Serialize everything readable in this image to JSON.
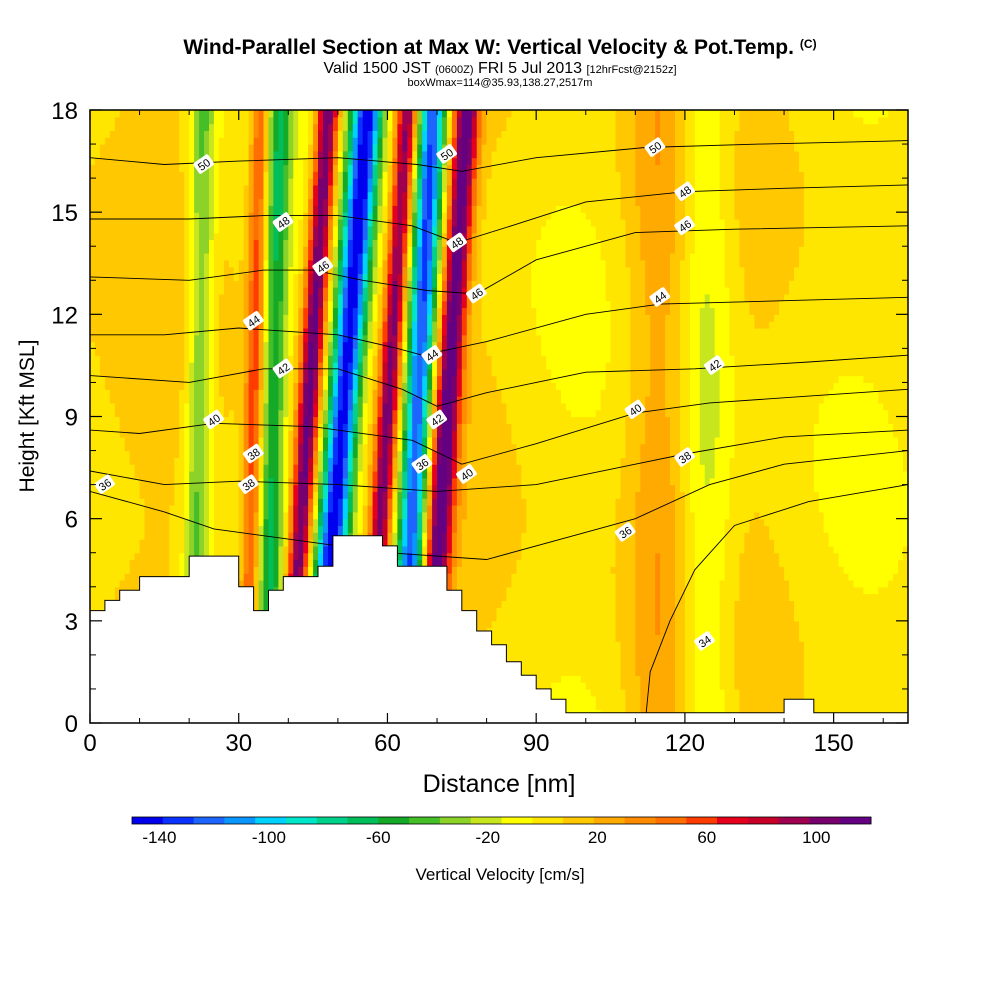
{
  "title": {
    "main": "Wind-Parallel Section at Max W: Vertical Velocity & Pot.Temp.",
    "copyright": "(C)",
    "valid_prefix": "Valid 1500 JST",
    "valid_utc": "(0600Z)",
    "valid_date": "FRI 5 Jul 2013",
    "forecast": "[12hrFcst@2152z]",
    "boxwmax": "boxWmax=114@35.93,138.27,2517m"
  },
  "chart_data": {
    "type": "heatmap",
    "xlabel": "Distance [nm]",
    "ylabel": "Height [Kft MSL]",
    "xlim": [
      0,
      165
    ],
    "ylim": [
      0,
      18
    ],
    "x_ticks": [
      0,
      30,
      60,
      90,
      120,
      150
    ],
    "y_ticks": [
      0,
      3,
      6,
      9,
      12,
      15,
      18
    ],
    "colorbar": {
      "label": "Vertical Velocity [cm/s]",
      "min": -150,
      "max": 120,
      "tick_values": [
        -140,
        -100,
        -60,
        -20,
        20,
        60,
        100
      ],
      "colors": [
        "#0000ee",
        "#0a32ff",
        "#1e64ff",
        "#0a96ff",
        "#00d2ff",
        "#00e6c8",
        "#00d28c",
        "#00be5a",
        "#14aa28",
        "#46be28",
        "#8cd228",
        "#c8e61e",
        "#ffff00",
        "#ffe600",
        "#ffc800",
        "#ffaa00",
        "#ff8c00",
        "#ff6e00",
        "#ff3c00",
        "#e6001e",
        "#c80028",
        "#a00050",
        "#78006e",
        "#640082"
      ]
    },
    "velocity_features": [
      {
        "type": "downdraft",
        "x_center": 51,
        "x_tilt_per_kft": 0.55,
        "half_width_nm": 3.2,
        "value_cm_s": -150
      },
      {
        "type": "downdraft",
        "x_center": 66,
        "x_tilt_per_kft": 0.35,
        "half_width_nm": 2.8,
        "value_cm_s": -140
      },
      {
        "type": "updraft",
        "x_center": 44,
        "x_tilt_per_kft": 0.45,
        "half_width_nm": 2.2,
        "value_cm_s": 114
      },
      {
        "type": "updraft",
        "x_center": 60,
        "x_tilt_per_kft": 0.45,
        "half_width_nm": 2.0,
        "value_cm_s": 95
      },
      {
        "type": "updraft",
        "x_center": 72,
        "x_tilt_per_kft": 0.45,
        "half_width_nm": 2.5,
        "value_cm_s": 110
      },
      {
        "type": "updraft",
        "x_center": 33,
        "x_tilt_per_kft": 0.15,
        "half_width_nm": 1.8,
        "value_cm_s": 55
      },
      {
        "type": "downdraft",
        "x_center": 22,
        "x_tilt_per_kft": 0.1,
        "half_width_nm": 2.6,
        "value_cm_s": -45
      },
      {
        "type": "downdraft",
        "x_center": 37,
        "x_tilt_per_kft": 0.15,
        "half_width_nm": 2.3,
        "value_cm_s": -60
      },
      {
        "type": "downdraft",
        "x_center": 124,
        "x_tilt_per_kft": 0.0,
        "half_width_nm": 6.0,
        "value_cm_s": -30
      },
      {
        "type": "updraft",
        "x_center": 115,
        "x_tilt_per_kft": 0.0,
        "half_width_nm": 7.0,
        "value_cm_s": 22
      }
    ],
    "terrain": [
      [
        0,
        3.3
      ],
      [
        3,
        3.3
      ],
      [
        3,
        3.6
      ],
      [
        6,
        3.6
      ],
      [
        6,
        3.9
      ],
      [
        10,
        3.9
      ],
      [
        10,
        4.3
      ],
      [
        20,
        4.3
      ],
      [
        20,
        4.9
      ],
      [
        30,
        4.9
      ],
      [
        30,
        4.0
      ],
      [
        33,
        4.0
      ],
      [
        33,
        3.3
      ],
      [
        36,
        3.3
      ],
      [
        36,
        3.9
      ],
      [
        39,
        3.9
      ],
      [
        39,
        4.3
      ],
      [
        46,
        4.3
      ],
      [
        46,
        4.6
      ],
      [
        49,
        4.6
      ],
      [
        49,
        5.5
      ],
      [
        59,
        5.5
      ],
      [
        59,
        5.2
      ],
      [
        62,
        5.2
      ],
      [
        62,
        4.6
      ],
      [
        72,
        4.6
      ],
      [
        72,
        3.9
      ],
      [
        75,
        3.9
      ],
      [
        75,
        3.3
      ],
      [
        78,
        3.3
      ],
      [
        78,
        2.7
      ],
      [
        81,
        2.7
      ],
      [
        81,
        2.3
      ],
      [
        84,
        2.3
      ],
      [
        84,
        1.8
      ],
      [
        87,
        1.8
      ],
      [
        87,
        1.4
      ],
      [
        90,
        1.4
      ],
      [
        90,
        1.0
      ],
      [
        93,
        1.0
      ],
      [
        93,
        0.7
      ],
      [
        96,
        0.7
      ],
      [
        96,
        0.3
      ],
      [
        140,
        0.3
      ],
      [
        140,
        0.7
      ],
      [
        146,
        0.7
      ],
      [
        146,
        0.3
      ],
      [
        165,
        0.3
      ]
    ],
    "contours": [
      {
        "level": 34,
        "label": "34",
        "points": [
          [
            112,
            0
          ],
          [
            113,
            1.5
          ],
          [
            117,
            3
          ],
          [
            122,
            4.5
          ],
          [
            130,
            5.8
          ],
          [
            145,
            6.5
          ],
          [
            165,
            7.0
          ]
        ]
      },
      {
        "level": 36,
        "label": "36",
        "points": [
          [
            0,
            6.8
          ],
          [
            15,
            6.2
          ],
          [
            25,
            5.7
          ],
          [
            40,
            5.4
          ],
          [
            60,
            5.0
          ],
          [
            80,
            4.8
          ],
          [
            100,
            5.6
          ],
          [
            110,
            6.0
          ],
          [
            125,
            7.0
          ],
          [
            140,
            7.6
          ],
          [
            165,
            8.0
          ]
        ]
      },
      {
        "level": 38,
        "label": "38",
        "points": [
          [
            0,
            7.4
          ],
          [
            15,
            7.0
          ],
          [
            30,
            7.1
          ],
          [
            50,
            7.0
          ],
          [
            70,
            6.8
          ],
          [
            90,
            7.0
          ],
          [
            110,
            7.6
          ],
          [
            120,
            7.9
          ],
          [
            140,
            8.4
          ],
          [
            165,
            8.6
          ]
        ]
      },
      {
        "level": 40,
        "label": "40",
        "points": [
          [
            0,
            8.6
          ],
          [
            10,
            8.5
          ],
          [
            25,
            8.8
          ],
          [
            45,
            8.7
          ],
          [
            65,
            8.3
          ],
          [
            75,
            7.6
          ],
          [
            90,
            8.2
          ],
          [
            110,
            9.1
          ],
          [
            125,
            9.4
          ],
          [
            145,
            9.6
          ],
          [
            165,
            9.8
          ]
        ]
      },
      {
        "level": 42,
        "label": "42",
        "points": [
          [
            0,
            10.2
          ],
          [
            20,
            10.0
          ],
          [
            35,
            10.4
          ],
          [
            50,
            10.4
          ],
          [
            63,
            9.8
          ],
          [
            70,
            9.3
          ],
          [
            80,
            9.7
          ],
          [
            100,
            10.3
          ],
          [
            122,
            10.4
          ],
          [
            145,
            10.6
          ],
          [
            165,
            10.8
          ]
        ]
      },
      {
        "level": 44,
        "label": "44",
        "points": [
          [
            0,
            11.4
          ],
          [
            15,
            11.4
          ],
          [
            30,
            11.6
          ],
          [
            50,
            11.4
          ],
          [
            62,
            11.0
          ],
          [
            67,
            10.8
          ],
          [
            80,
            11.2
          ],
          [
            100,
            12.0
          ],
          [
            115,
            12.3
          ],
          [
            140,
            12.4
          ],
          [
            165,
            12.5
          ]
        ]
      },
      {
        "level": 46,
        "label": "46",
        "points": [
          [
            0,
            13.1
          ],
          [
            20,
            13.0
          ],
          [
            35,
            13.3
          ],
          [
            45,
            13.3
          ],
          [
            55,
            13.0
          ],
          [
            68,
            12.7
          ],
          [
            78,
            12.6
          ],
          [
            90,
            13.6
          ],
          [
            110,
            14.4
          ],
          [
            130,
            14.5
          ],
          [
            165,
            14.6
          ]
        ]
      },
      {
        "level": 48,
        "label": "48",
        "points": [
          [
            0,
            14.8
          ],
          [
            20,
            14.8
          ],
          [
            35,
            14.9
          ],
          [
            50,
            14.9
          ],
          [
            65,
            14.6
          ],
          [
            74,
            14.1
          ],
          [
            85,
            14.6
          ],
          [
            100,
            15.3
          ],
          [
            120,
            15.6
          ],
          [
            140,
            15.7
          ],
          [
            165,
            15.8
          ]
        ]
      },
      {
        "level": 50,
        "label": "50",
        "points": [
          [
            0,
            16.6
          ],
          [
            15,
            16.4
          ],
          [
            30,
            16.5
          ],
          [
            50,
            16.6
          ],
          [
            66,
            16.4
          ],
          [
            75,
            16.2
          ],
          [
            90,
            16.6
          ],
          [
            112,
            16.9
          ],
          [
            135,
            17.0
          ],
          [
            165,
            17.1
          ]
        ]
      }
    ],
    "contour_labels": [
      {
        "text": "50",
        "x": 23,
        "y": 16.4
      },
      {
        "text": "48",
        "x": 39,
        "y": 14.7
      },
      {
        "text": "46",
        "x": 47,
        "y": 13.4
      },
      {
        "text": "44",
        "x": 33,
        "y": 11.8
      },
      {
        "text": "42",
        "x": 39,
        "y": 10.4
      },
      {
        "text": "40",
        "x": 25,
        "y": 8.9
      },
      {
        "text": "38",
        "x": 33,
        "y": 7.9
      },
      {
        "text": "38",
        "x": 32,
        "y": 7.0
      },
      {
        "text": "36",
        "x": 3,
        "y": 7.0
      },
      {
        "text": "50",
        "x": 72,
        "y": 16.7
      },
      {
        "text": "48",
        "x": 74,
        "y": 14.1
      },
      {
        "text": "46",
        "x": 78,
        "y": 12.6
      },
      {
        "text": "44",
        "x": 69,
        "y": 10.8
      },
      {
        "text": "42",
        "x": 70,
        "y": 8.9
      },
      {
        "text": "36",
        "x": 67,
        "y": 7.6
      },
      {
        "text": "40",
        "x": 76,
        "y": 7.3
      },
      {
        "text": "50",
        "x": 114,
        "y": 16.9
      },
      {
        "text": "48",
        "x": 120,
        "y": 15.6
      },
      {
        "text": "46",
        "x": 120,
        "y": 14.6
      },
      {
        "text": "44",
        "x": 115,
        "y": 12.5
      },
      {
        "text": "42",
        "x": 126,
        "y": 10.5
      },
      {
        "text": "40",
        "x": 110,
        "y": 9.2
      },
      {
        "text": "38",
        "x": 120,
        "y": 7.8
      },
      {
        "text": "36",
        "x": 108,
        "y": 5.6
      },
      {
        "text": "34",
        "x": 124,
        "y": 2.4
      }
    ]
  }
}
